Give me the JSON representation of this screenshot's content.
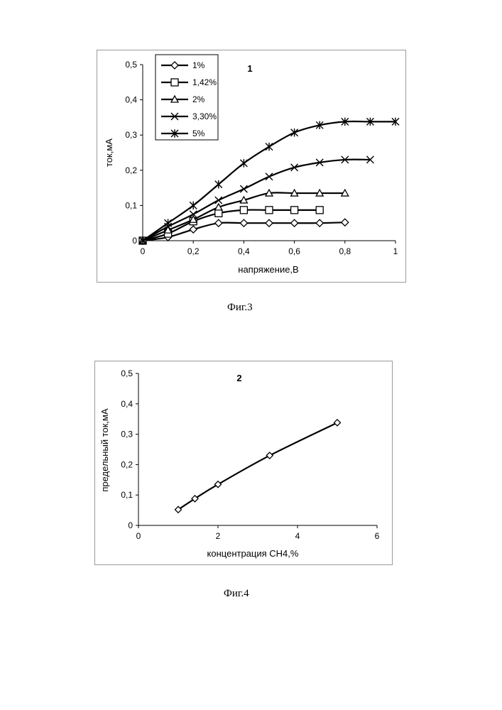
{
  "chart_data": [
    {
      "type": "line",
      "panel_label": "1",
      "xlabel": "напряжение,В",
      "ylabel": "ток,мА",
      "xlim": [
        0,
        1
      ],
      "ylim": [
        0,
        0.5
      ],
      "x_ticks": [
        0,
        0.2,
        0.4,
        0.6,
        0.8,
        1
      ],
      "x_tick_labels": [
        "0",
        "0,2",
        "0,4",
        "0,6",
        "0,8",
        "1"
      ],
      "y_ticks": [
        0,
        0.1,
        0.2,
        0.3,
        0.4,
        0.5
      ],
      "y_tick_labels": [
        "0",
        "0,1",
        "0,2",
        "0,3",
        "0,4",
        "0,5"
      ],
      "grid": false,
      "legend_position": "top-left",
      "series": [
        {
          "name": "1%",
          "marker": "diamond",
          "x": [
            0,
            0.1,
            0.2,
            0.3,
            0.4,
            0.5,
            0.6,
            0.7,
            0.8
          ],
          "y": [
            0,
            0.01,
            0.032,
            0.05,
            0.05,
            0.05,
            0.05,
            0.05,
            0.052
          ]
        },
        {
          "name": "1,42%",
          "marker": "square",
          "x": [
            0,
            0.1,
            0.2,
            0.3,
            0.4,
            0.5,
            0.6,
            0.7
          ],
          "y": [
            0,
            0.02,
            0.055,
            0.078,
            0.087,
            0.087,
            0.087,
            0.087
          ]
        },
        {
          "name": "2%",
          "marker": "triangle",
          "x": [
            0,
            0.1,
            0.2,
            0.3,
            0.4,
            0.5,
            0.6,
            0.7,
            0.8
          ],
          "y": [
            0,
            0.03,
            0.06,
            0.095,
            0.115,
            0.135,
            0.135,
            0.135,
            0.135
          ]
        },
        {
          "name": "3,30%",
          "marker": "x",
          "x": [
            0,
            0.1,
            0.2,
            0.3,
            0.4,
            0.5,
            0.6,
            0.7,
            0.8,
            0.9
          ],
          "y": [
            0,
            0.04,
            0.075,
            0.115,
            0.147,
            0.182,
            0.208,
            0.222,
            0.23,
            0.23
          ]
        },
        {
          "name": "5%",
          "marker": "star",
          "x": [
            0,
            0.1,
            0.2,
            0.3,
            0.4,
            0.5,
            0.6,
            0.7,
            0.8,
            0.9,
            1.0
          ],
          "y": [
            0,
            0.05,
            0.1,
            0.16,
            0.22,
            0.267,
            0.307,
            0.328,
            0.338,
            0.338,
            0.338
          ]
        }
      ]
    },
    {
      "type": "line",
      "panel_label": "2",
      "xlabel": "концентрация СН4,%",
      "ylabel": "предельный ток,мА",
      "xlim": [
        0,
        6
      ],
      "ylim": [
        0,
        0.5
      ],
      "x_ticks": [
        0,
        2,
        4,
        6
      ],
      "x_tick_labels": [
        "0",
        "2",
        "4",
        "6"
      ],
      "y_ticks": [
        0,
        0.1,
        0.2,
        0.3,
        0.4,
        0.5
      ],
      "y_tick_labels": [
        "0",
        "0,1",
        "0,2",
        "0,3",
        "0,4",
        "0,5"
      ],
      "grid": false,
      "series": [
        {
          "marker": "diamond",
          "x": [
            1,
            1.42,
            2,
            3.3,
            5
          ],
          "y": [
            0.052,
            0.088,
            0.135,
            0.23,
            0.338
          ]
        }
      ]
    }
  ],
  "captions": {
    "fig3": "Фиг.3",
    "fig4": "Фиг.4"
  }
}
